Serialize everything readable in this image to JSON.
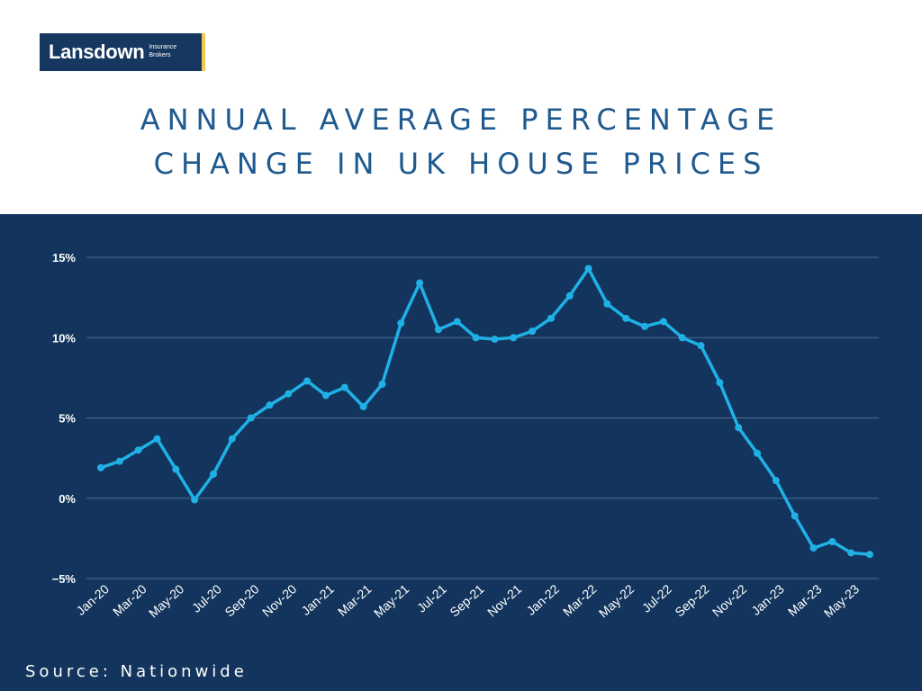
{
  "logo": {
    "name": "Lansdown",
    "sub_line1": "Insurance",
    "sub_line2": "Brokers"
  },
  "title_line1": "ANNUAL AVERAGE PERCENTAGE",
  "title_line2": "CHANGE IN UK HOUSE PRICES",
  "source": "Source: Nationwide",
  "colors": {
    "background_top": "#ffffff",
    "panel": "#13355d",
    "line": "#1fb1e6",
    "title": "#1f5a8f",
    "logo_accent": "#f2c94c"
  },
  "chart_data": {
    "type": "line",
    "title": "ANNUAL AVERAGE PERCENTAGE CHANGE IN UK HOUSE PRICES",
    "xlabel": "",
    "ylabel": "",
    "ylim": [
      -5,
      15
    ],
    "yticks": [
      15,
      10,
      5,
      0,
      -5
    ],
    "ytick_labels": [
      "15%",
      "10%",
      "5%",
      "0%",
      "−5%"
    ],
    "grid": true,
    "x": [
      "Jan-20",
      "Feb-20",
      "Mar-20",
      "Apr-20",
      "May-20",
      "Jun-20",
      "Jul-20",
      "Aug-20",
      "Sep-20",
      "Oct-20",
      "Nov-20",
      "Dec-20",
      "Jan-21",
      "Feb-21",
      "Mar-21",
      "Apr-21",
      "May-21",
      "Jun-21",
      "Jul-21",
      "Aug-21",
      "Sep-21",
      "Oct-21",
      "Nov-21",
      "Dec-21",
      "Jan-22",
      "Feb-22",
      "Mar-22",
      "Apr-22",
      "May-22",
      "Jun-22",
      "Jul-22",
      "Aug-22",
      "Sep-22",
      "Oct-22",
      "Nov-22",
      "Dec-22",
      "Jan-23",
      "Feb-23",
      "Mar-23",
      "Apr-23",
      "May-23",
      "Jun-23"
    ],
    "xtick_labels": [
      "Jan-20",
      "Mar-20",
      "May-20",
      "Jul-20",
      "Sep-20",
      "Nov-20",
      "Jan-21",
      "Mar-21",
      "May-21",
      "Jul-21",
      "Sep-21",
      "Nov-21",
      "Jan-22",
      "Mar-22",
      "May-22",
      "Jul-22",
      "Sep-22",
      "Nov-22",
      "Jan-23",
      "Mar-23",
      "May-23"
    ],
    "series": [
      {
        "values": [
          1.9,
          2.3,
          3.0,
          3.7,
          1.8,
          -0.1,
          1.5,
          3.7,
          5.0,
          5.8,
          6.5,
          7.3,
          6.4,
          6.9,
          5.7,
          7.1,
          10.9,
          13.4,
          10.5,
          11.0,
          10.0,
          9.9,
          10.0,
          10.4,
          11.2,
          12.6,
          14.3,
          12.1,
          11.2,
          10.7,
          11.0,
          10.0,
          9.5,
          7.2,
          4.4,
          2.8,
          1.1,
          -1.1,
          -3.1,
          -2.7,
          -3.4,
          -3.5
        ]
      }
    ]
  }
}
